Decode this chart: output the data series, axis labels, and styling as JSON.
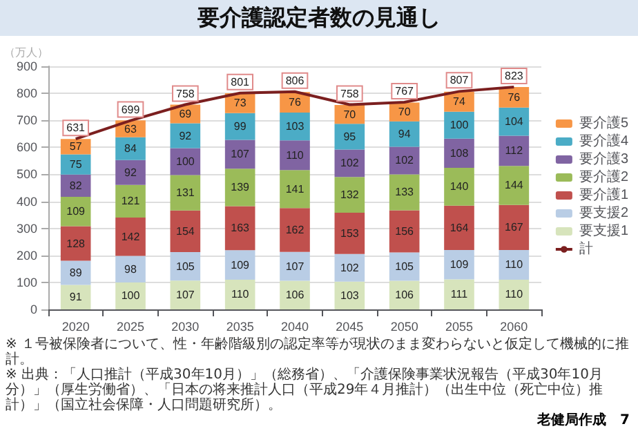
{
  "chart_data": {
    "type": "bar",
    "title": "要介護認定者数の見通し",
    "ylabel": "（万人）",
    "categories": [
      "2020",
      "2025",
      "2030",
      "2035",
      "2040",
      "2045",
      "2050",
      "2055",
      "2060"
    ],
    "series": [
      {
        "name": "要支援1",
        "color": "#d7e4bc",
        "values": [
          91,
          100,
          107,
          110,
          106,
          103,
          106,
          111,
          110
        ]
      },
      {
        "name": "要支援2",
        "color": "#b9cde5",
        "values": [
          89,
          98,
          105,
          109,
          107,
          102,
          105,
          109,
          110
        ]
      },
      {
        "name": "要介護1",
        "color": "#c0504d",
        "values": [
          128,
          142,
          154,
          163,
          162,
          153,
          156,
          164,
          167
        ]
      },
      {
        "name": "要介護2",
        "color": "#9bbb59",
        "values": [
          109,
          121,
          131,
          139,
          141,
          132,
          133,
          140,
          144
        ]
      },
      {
        "name": "要介護3",
        "color": "#8064a2",
        "values": [
          82,
          92,
          100,
          107,
          110,
          102,
          102,
          108,
          112
        ]
      },
      {
        "name": "要介護4",
        "color": "#4bacc6",
        "values": [
          75,
          84,
          92,
          99,
          103,
          95,
          94,
          100,
          104
        ]
      },
      {
        "name": "要介護5",
        "color": "#f79646",
        "values": [
          57,
          63,
          69,
          73,
          76,
          70,
          70,
          74,
          76
        ]
      },
      {
        "name": "計",
        "type": "line",
        "color": "#7b1f1f",
        "values": [
          631,
          699,
          758,
          801,
          806,
          758,
          767,
          807,
          823
        ]
      }
    ],
    "stacked": true,
    "data_labels": true,
    "ylim": [
      0,
      900
    ],
    "yticks": [
      0,
      100,
      200,
      300,
      400,
      500,
      600,
      700,
      800,
      900
    ],
    "grid": "y",
    "legend": "right",
    "marker": "none",
    "annotations": [
      "※ １号被保険者について、性・年齢階級別の認定率等が現状のまま変わらないと仮定して機械的に推計。",
      "※ 出典：「人口推計（平成30年10月）」（総務省）、「介護保険事業状況報告（平成30年10月分）」（厚生労働省）、「日本の将来推計人口（平成29年４月推計）（出生中位（死亡中位）推計）」（国立社会保障・人口問題研究所）。",
      "老健局作成",
      "7"
    ]
  }
}
